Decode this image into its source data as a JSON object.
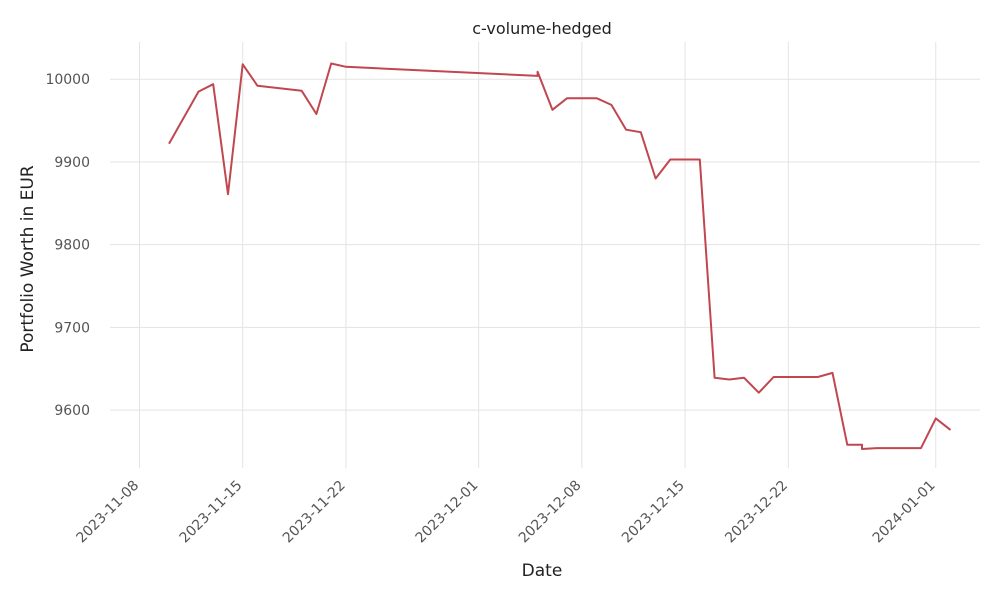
{
  "chart_data": {
    "type": "line",
    "title": "c-volume-hedged",
    "xlabel": "Date",
    "ylabel": "Portfolio Worth in EUR",
    "x_type": "date",
    "xlim": [
      "2023-11-06",
      "2024-01-04"
    ],
    "ylim": [
      9530,
      10045
    ],
    "xticks": [
      "2023-11-08",
      "2023-11-15",
      "2023-11-22",
      "2023-12-01",
      "2023-12-08",
      "2023-12-15",
      "2023-12-22",
      "2024-01-01"
    ],
    "yticks": [
      9600,
      9700,
      9800,
      9900,
      10000
    ],
    "grid": true,
    "legend": "none",
    "series": [
      {
        "color": "#c0474f",
        "x": [
          "2023-11-10",
          "2023-11-12",
          "2023-11-13",
          "2023-11-14",
          "2023-11-15",
          "2023-11-16",
          "2023-11-19",
          "2023-11-20",
          "2023-11-21",
          "2023-11-22",
          "2023-12-05",
          "2023-12-05",
          "2023-12-06",
          "2023-12-07",
          "2023-12-09",
          "2023-12-10",
          "2023-12-11",
          "2023-12-12",
          "2023-12-13",
          "2023-12-14",
          "2023-12-16",
          "2023-12-17",
          "2023-12-18",
          "2023-12-19",
          "2023-12-20",
          "2023-12-21",
          "2023-12-23",
          "2023-12-24",
          "2023-12-25",
          "2023-12-26",
          "2023-12-27",
          "2023-12-27",
          "2023-12-28",
          "2023-12-31",
          "2024-01-01",
          "2024-01-02"
        ],
        "y": [
          9922,
          9985,
          9994,
          9861,
          10018,
          9992,
          9986,
          9958,
          10019,
          10015,
          10004,
          10009,
          9963,
          9977,
          9977,
          9969,
          9939,
          9936,
          9880,
          9903,
          9903,
          9639,
          9637,
          9639,
          9621,
          9640,
          9640,
          9640,
          9645,
          9558,
          9558,
          9553,
          9554,
          9554,
          9590,
          9576
        ]
      }
    ]
  }
}
